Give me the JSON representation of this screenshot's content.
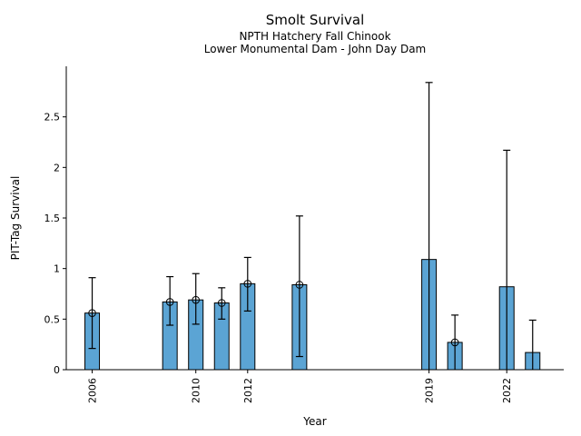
{
  "chart_data": {
    "type": "bar",
    "title": "Smolt Survival",
    "subtitle1": "NPTH Hatchery Fall Chinook",
    "subtitle2": "Lower Monumental Dam - John Day Dam",
    "xlabel": "Year",
    "ylabel": "PIT-Tag Survival",
    "categories": [
      2006,
      2009,
      2010,
      2011,
      2012,
      2014,
      2019,
      2020,
      2022,
      2023
    ],
    "values": [
      0.56,
      0.67,
      0.69,
      0.66,
      0.85,
      0.84,
      1.09,
      0.27,
      0.82,
      0.17
    ],
    "error_low": [
      0.21,
      0.44,
      0.45,
      0.5,
      0.58,
      0.13,
      0.0,
      0.0,
      0.0,
      0.0
    ],
    "error_high": [
      0.91,
      0.92,
      0.95,
      0.81,
      1.11,
      1.52,
      2.84,
      0.54,
      2.17,
      0.49
    ],
    "marker_at_top": [
      true,
      true,
      true,
      true,
      true,
      true,
      false,
      true,
      false,
      false
    ],
    "xticks": [
      "2006",
      "2010",
      "2012",
      "2019",
      "2022"
    ],
    "xtick_years": [
      2006,
      2010,
      2012,
      2019,
      2022
    ],
    "yticks": [
      "0",
      "0.5",
      "1",
      "1.5",
      "2",
      "2.5"
    ],
    "ytick_values": [
      0,
      0.5,
      1,
      1.5,
      2,
      2.5
    ],
    "xlim": [
      2005,
      2024.2
    ],
    "ylim": [
      0,
      3.0
    ],
    "bar_color": "#5BA4D4",
    "edge_color": "#000000",
    "grid": false,
    "legend": "none"
  }
}
